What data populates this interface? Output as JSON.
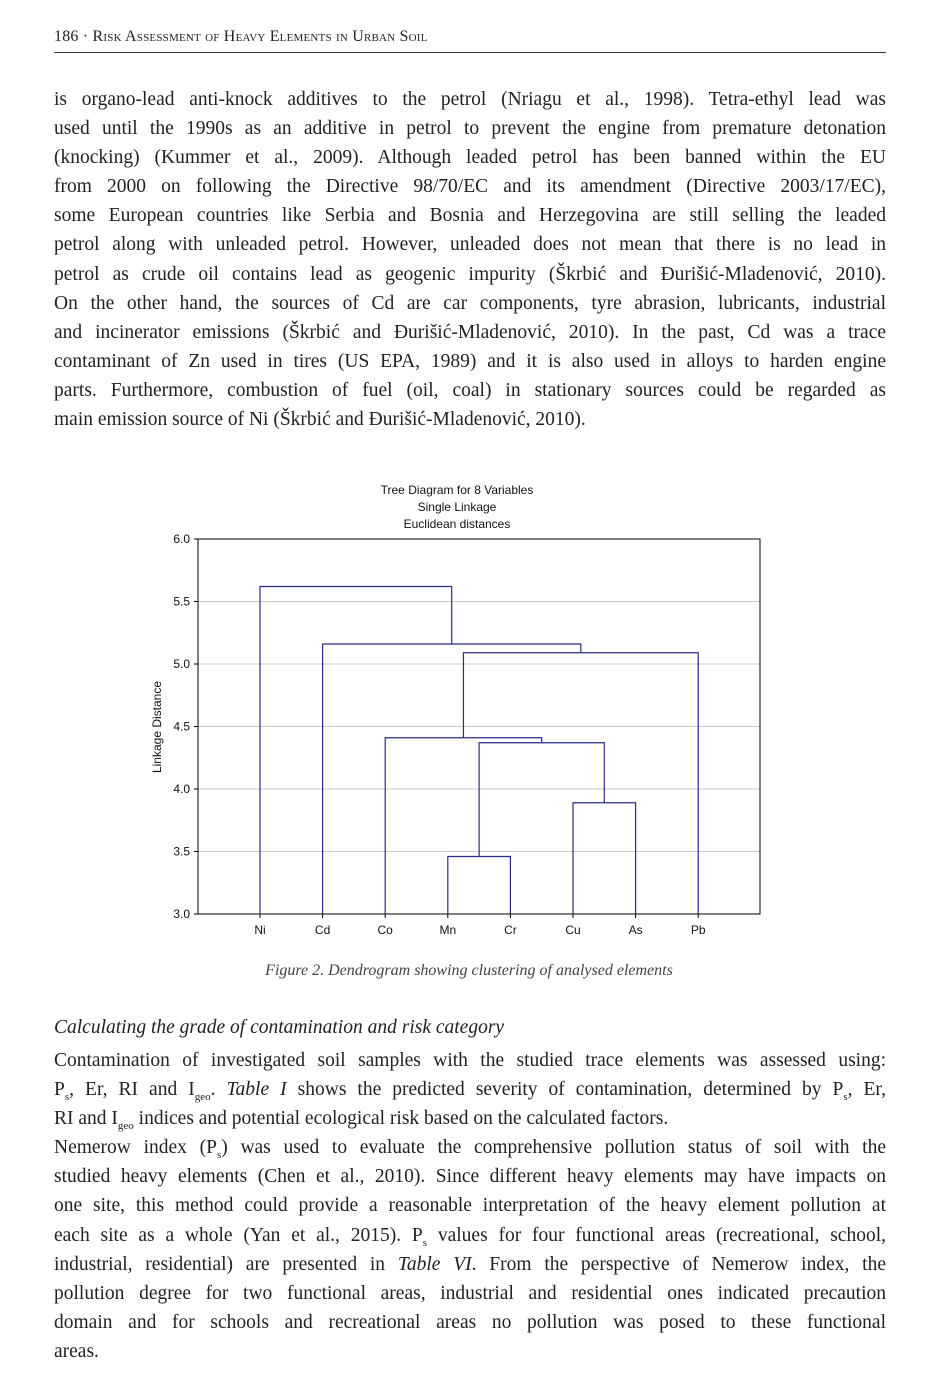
{
  "header": {
    "title": "186 · Risk Assessment of Heavy Elements in Urban Soil"
  },
  "paragraph1": [
    [
      {
        "t": "is organo-lead anti-knock additives to the petrol (Nriagu et al., 1998). Tetra-ethyl lead was"
      }
    ],
    [
      {
        "t": "used until the 1990s as an additive in petrol to prevent the engine from premature detonation"
      }
    ],
    [
      {
        "t": "(knocking) (Kummer et al., 2009). Although leaded petrol has been banned within the EU"
      }
    ],
    [
      {
        "t": "from 2000 on following the Directive 98/70/EC and its amendment (Directive 2003/17/EC),"
      }
    ],
    [
      {
        "t": "some European countries like Serbia and Bosnia and Herzegovina are still selling the leaded"
      }
    ],
    [
      {
        "t": "petrol along with unleaded petrol. However, unleaded does not mean that there is no lead in"
      }
    ],
    [
      {
        "t": "petrol as crude oil contains lead as geogenic impurity (Škrbić and Đurišić-Mladenović, 2010)."
      }
    ],
    [
      {
        "t": "On the other hand, the sources of Cd are car components, tyre abrasion, lubricants, industrial"
      }
    ],
    [
      {
        "t": "and incinerator emissions (Škrbić and Đurišić-Mladenović, 2010). In the past, Cd was a trace"
      }
    ],
    [
      {
        "t": "contaminant of Zn used in tires (US EPA, 1989) and it is also used in alloys to harden engine"
      }
    ],
    [
      {
        "t": "parts. Furthermore, combustion of fuel (oil, coal) in stationary sources could be regarded as"
      }
    ],
    [
      {
        "t": "main emission source of Ni (Škrbić and Đurišić-Mladenović, 2010).",
        "last": true
      }
    ]
  ],
  "figure": {
    "caption": "Figure 2. Dendrogram showing clustering of analysed elements"
  },
  "chart_data": {
    "type": "dendrogram",
    "title": [
      "Tree Diagram for 8 Variables",
      "Single Linkage",
      "Euclidean distances"
    ],
    "ylabel": "Linkage Distance",
    "ylim": [
      3.0,
      6.0
    ],
    "yticks": [
      "3.0",
      "3.5",
      "4.0",
      "4.5",
      "5.0",
      "5.5",
      "6.0"
    ],
    "grid": true,
    "line_color": "#2b2b8c",
    "leaves": [
      "Ni",
      "Cd",
      "Co",
      "Mn",
      "Cr",
      "Cu",
      "As",
      "Pb"
    ],
    "merges": [
      {
        "left": "Mn",
        "right": "Cr",
        "height": 3.46
      },
      {
        "left": "Cu",
        "right": "As",
        "height": 3.89
      },
      {
        "left": "Mn+Cr",
        "right": "Cu+As",
        "height": 4.37
      },
      {
        "left": "Co",
        "right": "Mn+Cr+Cu+As",
        "height": 4.41
      },
      {
        "left": "Co+Mn+Cr+Cu+As",
        "right": "Pb",
        "height": 5.09
      },
      {
        "left": "Cd",
        "right": "Co+Mn+Cr+Cu+As+Pb",
        "height": 5.16
      },
      {
        "left": "Ni",
        "right": "Cd+Co+Mn+Cr+Cu+As+Pb",
        "height": 5.62
      }
    ]
  },
  "section": {
    "heading": "Calculating the grade of contamination and risk category"
  },
  "paragraph2": [
    [
      {
        "t": "Contamination of investigated soil samples with the studied trace elements was assessed using:"
      }
    ],
    [
      {
        "t": "P"
      },
      {
        "t": "s",
        "sub": true
      },
      {
        "t": ", Er, RI and I"
      },
      {
        "t": "geo",
        "sub": true
      },
      {
        "t": ". "
      },
      {
        "t": "Table I",
        "i": true
      },
      {
        "t": " shows the predicted severity of contamination, determined by P"
      },
      {
        "t": "s",
        "sub": true
      },
      {
        "t": ", Er,"
      }
    ],
    [
      {
        "t": "RI and I"
      },
      {
        "t": "geo",
        "sub": true
      },
      {
        "t": " indices and potential ecological risk based on the calculated factors.",
        "last": true
      }
    ],
    [
      {
        "t": "Nemerow index (P"
      },
      {
        "t": "s",
        "sub": true
      },
      {
        "t": ") was used to evaluate the comprehensive pollution status of soil with the"
      }
    ],
    [
      {
        "t": "studied heavy elements (Chen et al., 2010). Since different heavy elements may have impacts on"
      }
    ],
    [
      {
        "t": "one site, this method could provide a reasonable interpretation of the heavy element pollution at"
      }
    ],
    [
      {
        "t": "each site as a whole (Yan et al., 2015). P"
      },
      {
        "t": "s",
        "sub": true
      },
      {
        "t": " values for four functional areas (recreational, school,"
      }
    ],
    [
      {
        "t": "industrial, residential) are presented in "
      },
      {
        "t": "Table VI",
        "i": true
      },
      {
        "t": ". From the perspective of Nemerow index, the"
      }
    ],
    [
      {
        "t": "pollution degree for two functional areas, industrial and residential ones indicated precaution"
      }
    ],
    [
      {
        "t": "domain and for schools and recreational areas no pollution was posed to these functional"
      }
    ],
    [
      {
        "t": "areas.",
        "last": true
      }
    ]
  ]
}
